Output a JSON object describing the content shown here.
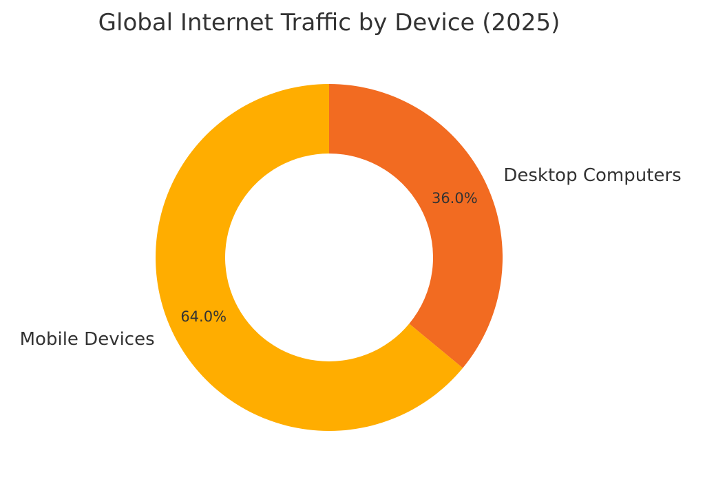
{
  "chart_data": {
    "type": "pie",
    "variant": "donut",
    "title": "Global Internet Traffic by Device (2025)",
    "start_angle_deg": 90,
    "direction": "clockwise",
    "slices": [
      {
        "label": "Desktop Computers",
        "value": 36.0,
        "pct_label": "36.0%",
        "color": "#f26b21"
      },
      {
        "label": "Mobile Devices",
        "value": 64.0,
        "pct_label": "64.0%",
        "color": "#ffad00"
      }
    ]
  }
}
